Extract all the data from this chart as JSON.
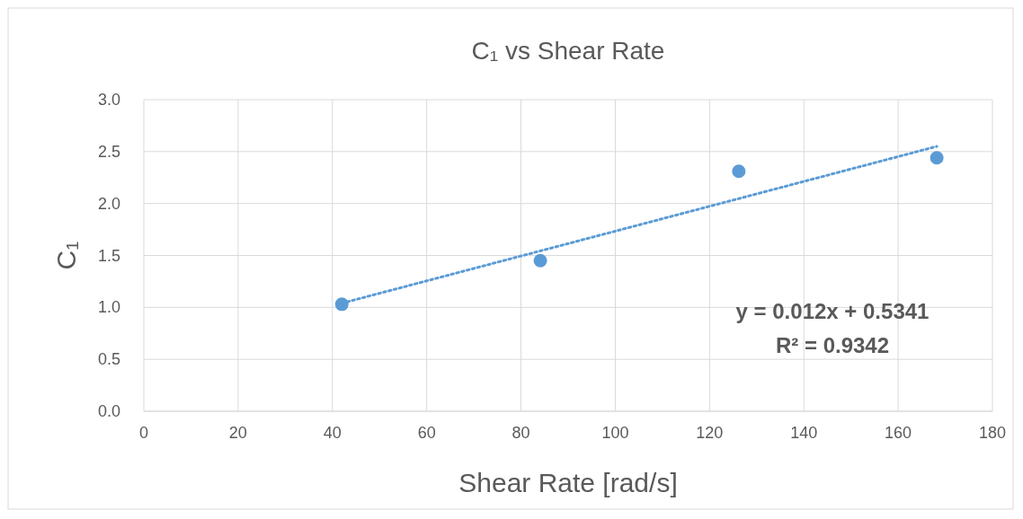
{
  "chart_data": {
    "type": "scatter",
    "title": "C₁ vs Shear Rate",
    "xlabel": "Shear Rate [rad/s]",
    "ylabel": "C₁",
    "xlim": [
      0,
      180
    ],
    "xticks": [
      0,
      20,
      40,
      60,
      80,
      100,
      120,
      140,
      160,
      180
    ],
    "ylim": [
      0,
      3
    ],
    "yticks": [
      {
        "value": 0,
        "label": "0.0"
      },
      {
        "value": 0.5,
        "label": "0.5"
      },
      {
        "value": 1,
        "label": "1.0"
      },
      {
        "value": 1.5,
        "label": "1.5"
      },
      {
        "value": 2,
        "label": "2.0"
      },
      {
        "value": 2.5,
        "label": "2.5"
      },
      {
        "value": 3,
        "label": "3.0"
      }
    ],
    "grid": true,
    "marker": "circle",
    "series": [
      {
        "color": "#5b9bd5",
        "x": [
          42,
          84.1,
          126.2,
          168.2
        ],
        "values": [
          1.03,
          1.45,
          2.31,
          2.44
        ]
      },
      {
        "type": "line",
        "color": "#5b9bd5",
        "line_style": "dotted",
        "marker": "none",
        "x": [
          42,
          168.2
        ],
        "values": [
          1.04,
          2.55
        ]
      }
    ],
    "annotations": [
      "y = 0.012x + 0.5341",
      "R² = 0.9342"
    ]
  }
}
